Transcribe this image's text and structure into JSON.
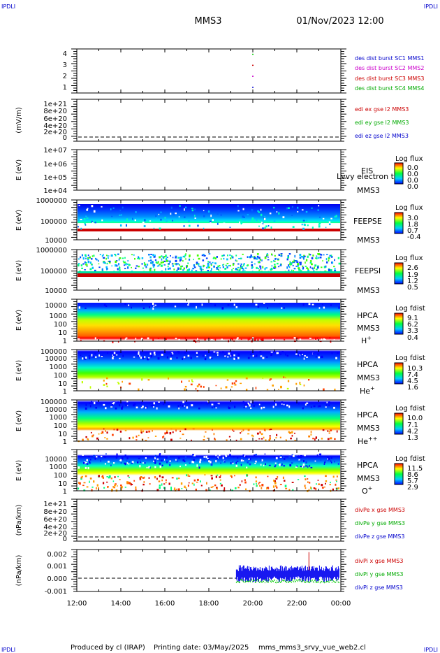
{
  "header": {
    "corner_left": "IPDLI",
    "corner_right": "IPDLI",
    "title": "MMS3",
    "datetime": "01/Nov/2023 12:00"
  },
  "footer": {
    "credit": "Produced by cl (IRAP)",
    "printing": "Printing date: 03/May/2025",
    "script": "mms_mms3_srvy_vue_web2.cl",
    "corner_left": "IPDLI",
    "corner_right": "IPDLI"
  },
  "x_axis": {
    "ticks": [
      "12:00",
      "14:00",
      "16:00",
      "18:00",
      "20:00",
      "22:00",
      "00:00"
    ],
    "range_hours": [
      12,
      24
    ]
  },
  "colors": {
    "blue": "#0000cc",
    "magenta": "#cc00cc",
    "red": "#cc0000",
    "green": "#00cc00",
    "dashed": "#000000"
  },
  "chart_data": [
    {
      "type": "scatter",
      "panel": "des_dist_burst",
      "ylabel": "",
      "yticks": [
        "1",
        "2",
        "3",
        "4"
      ],
      "ylim": [
        0.5,
        4.5
      ],
      "legend": [
        {
          "label": "des dist burst SC1 MMS1",
          "color": "#0000cc"
        },
        {
          "label": "des dist burst SC2 MMS2",
          "color": "#cc00cc"
        },
        {
          "label": "des dist burst SC3 MMS3",
          "color": "#cc0000"
        },
        {
          "label": "des dist burst SC4 MMS4",
          "color": "#00cc00"
        }
      ],
      "series": [
        {
          "name": "des dist burst SC1 MMS1",
          "x": [
            20.0
          ],
          "y": [
            1
          ]
        },
        {
          "name": "des dist burst SC2 MMS2",
          "x": [
            20.0
          ],
          "y": [
            2
          ]
        },
        {
          "name": "des dist burst SC3 MMS3",
          "x": [
            20.0
          ],
          "y": [
            3
          ]
        },
        {
          "name": "des dist burst SC4 MMS4",
          "x": [
            20.0
          ],
          "y": [
            4
          ]
        }
      ]
    },
    {
      "type": "line",
      "panel": "edi_e",
      "ylabel": "(mV/m)",
      "yticks": [
        "1e+21",
        "8e+20",
        "6e+20",
        "4e+20",
        "2e+20",
        "0"
      ],
      "ylim": [
        -3e+19,
        1.05e+21
      ],
      "zero_line": true,
      "legend": [
        {
          "label": "edi ex gse l2 MMS3",
          "color": "#cc0000"
        },
        {
          "label": "edi ey gse l2 MMS3",
          "color": "#00cc00"
        },
        {
          "label": "edi ez gse l2 MMS3",
          "color": "#0000cc"
        }
      ]
    },
    {
      "type": "heatmap",
      "panel": "EIS",
      "ylabel": "E (eV)",
      "yticks": [
        "1e+07",
        "1e+06",
        "1e+05",
        "1e+04"
      ],
      "labels": [
        "EIS",
        "MMS3"
      ],
      "overlay_text": "Lvvy electron to",
      "colorbar": {
        "title": "Log flux",
        "ticks": [
          "0.0",
          "0.0",
          "0.0",
          "0.0"
        ]
      }
    },
    {
      "type": "heatmap",
      "panel": "FEEPSE",
      "ylabel": "E (eV)",
      "yticks": [
        "1000000",
        "100000",
        "10000"
      ],
      "labels": [
        "FEEPSE",
        "MMS3"
      ],
      "colorbar": {
        "title": "Log flux",
        "ticks": [
          "3.0",
          "1.8",
          "0.7",
          "-0.4"
        ]
      }
    },
    {
      "type": "heatmap",
      "panel": "FEEPSI",
      "ylabel": "E (eV)",
      "yticks": [
        "1000000",
        "100000",
        "10000"
      ],
      "labels": [
        "FEEPSI",
        "MMS3"
      ],
      "colorbar": {
        "title": "Log flux",
        "ticks": [
          "2.6",
          "1.9",
          "1.2",
          "0.5"
        ]
      }
    },
    {
      "type": "heatmap",
      "panel": "HPCA_H",
      "ylabel": "E (eV)",
      "yticks": [
        "10000",
        "1000",
        "100",
        "10",
        "1"
      ],
      "labels": [
        "HPCA",
        "MMS3",
        "H",
        "+"
      ],
      "colorbar": {
        "title": "Log fdist",
        "ticks": [
          "9.1",
          "6.2",
          "3.3",
          "0.4"
        ]
      }
    },
    {
      "type": "heatmap",
      "panel": "HPCA_He+",
      "ylabel": "E (eV)",
      "yticks": [
        "100000",
        "10000",
        "1000",
        "100",
        "10",
        "1"
      ],
      "labels": [
        "HPCA",
        "MMS3",
        "He",
        "+"
      ],
      "colorbar": {
        "title": "Log fdist",
        "ticks": [
          "10.3",
          "7.4",
          "4.5",
          "1.6"
        ]
      }
    },
    {
      "type": "heatmap",
      "panel": "HPCA_He++",
      "ylabel": "E (eV)",
      "yticks": [
        "100000",
        "10000",
        "1000",
        "100",
        "10",
        "1"
      ],
      "labels": [
        "HPCA",
        "MMS3",
        "He",
        "++"
      ],
      "colorbar": {
        "title": "Log fdist",
        "ticks": [
          "10.0",
          "7.1",
          "4.2",
          "1.3"
        ]
      }
    },
    {
      "type": "heatmap",
      "panel": "HPCA_O+",
      "ylabel": "E (eV)",
      "yticks": [
        "10000",
        "1000",
        "100",
        "10",
        "1"
      ],
      "labels": [
        "HPCA",
        "MMS3",
        "O",
        "+"
      ],
      "colorbar": {
        "title": "Log fdist",
        "ticks": [
          "11.5",
          "8.6",
          "5.7",
          "2.9"
        ]
      }
    },
    {
      "type": "line",
      "panel": "divPe",
      "ylabel": "(nPa/km)",
      "yticks": [
        "1e+21",
        "8e+20",
        "6e+20",
        "4e+20",
        "2e+20",
        "0"
      ],
      "zero_line": true,
      "legend": [
        {
          "label": "divPe x gse MMS3",
          "color": "#cc0000"
        },
        {
          "label": "divPe y gse MMS3",
          "color": "#00cc00"
        },
        {
          "label": "divPe z gse MMS3",
          "color": "#0000cc"
        }
      ]
    },
    {
      "type": "line",
      "panel": "divPi",
      "ylabel": "(nPa/km)",
      "yticks": [
        "0.002",
        "0.001",
        "0.000",
        "-0.001"
      ],
      "ylim": [
        -0.0011,
        0.0021
      ],
      "zero_line": true,
      "data_start_hour": 19.25,
      "legend": [
        {
          "label": "divPi x gse MMS3",
          "color": "#cc0000"
        },
        {
          "label": "divPi y gse MMS3",
          "color": "#00cc00"
        },
        {
          "label": "divPi z gse MMS3",
          "color": "#0000cc"
        }
      ],
      "series": [
        {
          "name": "divPi z gse MMS3",
          "y_range": [
            -0.0004,
            0.0009
          ]
        },
        {
          "name": "divPi y gse MMS3",
          "y_range": [
            -0.0004,
            0.0001
          ]
        },
        {
          "name": "divPi x gse MMS3",
          "peak": {
            "x": 22.55,
            "y": 0.0019
          }
        }
      ]
    }
  ]
}
